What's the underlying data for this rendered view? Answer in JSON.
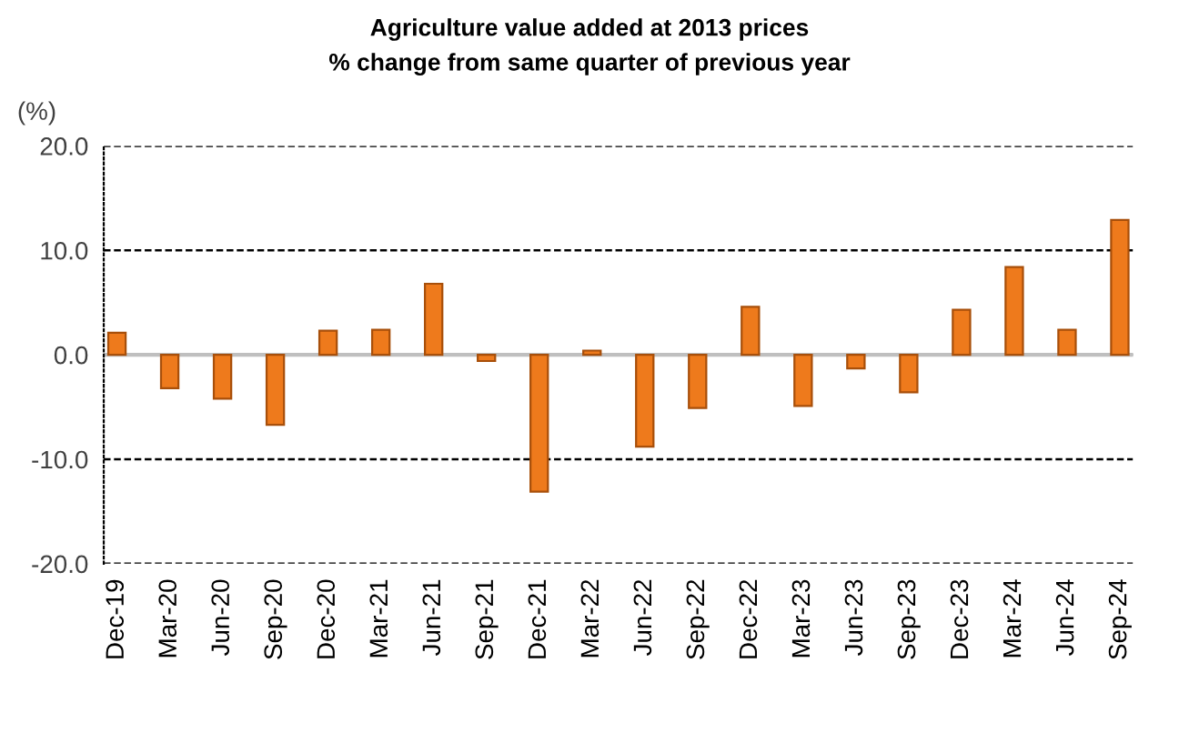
{
  "chart_data": {
    "type": "bar",
    "title": "Agriculture value added at 2013 prices\n% change from same quarter of previous year",
    "ylabel": "(%)",
    "categories": [
      "Dec-19",
      "Mar-20",
      "Jun-20",
      "Sep-20",
      "Dec-20",
      "Mar-21",
      "Jun-21",
      "Sep-21",
      "Dec-21",
      "Mar-22",
      "Jun-22",
      "Sep-22",
      "Dec-22",
      "Mar-23",
      "Jun-23",
      "Sep-23",
      "Dec-23",
      "Mar-24",
      "Jun-24",
      "Sep-24"
    ],
    "values": [
      2.1,
      -3.2,
      -4.2,
      -6.7,
      2.3,
      2.4,
      6.8,
      -0.6,
      -13.1,
      0.4,
      -8.8,
      -5.1,
      4.6,
      -4.9,
      -1.3,
      -3.6,
      4.3,
      8.4,
      2.4,
      12.9
    ],
    "color": "#ee7a1c",
    "ylim": [
      -20,
      20
    ],
    "yticks": [
      {
        "value": -20,
        "label": "-20.0"
      },
      {
        "value": -10,
        "label": "-10.0"
      },
      {
        "value": 0,
        "label": "0.0"
      },
      {
        "value": 10,
        "label": "10.0"
      },
      {
        "value": 20,
        "label": "20.0"
      }
    ],
    "ref_lines": [
      {
        "axis": "y",
        "value": 0,
        "color": "#bfbfbf",
        "line_style": "solid"
      }
    ],
    "grid": "y",
    "legend": false
  }
}
